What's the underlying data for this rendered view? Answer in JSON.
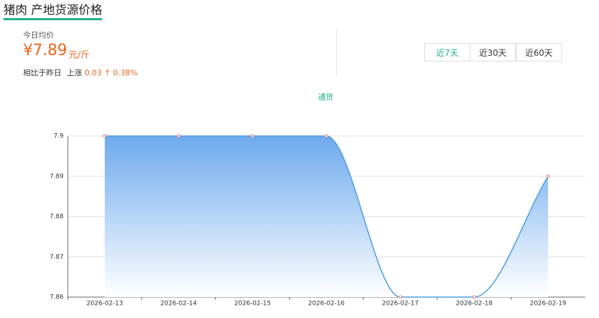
{
  "header": {
    "title": "猪肉 产地货源价格",
    "today_label": "今日均价",
    "price": "¥7.89",
    "unit": "元/斤",
    "compare_label": "相比于昨日",
    "trend_label": "上涨",
    "change": "0.03",
    "arrow": "↑",
    "change_pct": "0.38%"
  },
  "tabs": [
    "近7天",
    "近30天",
    "近60天"
  ],
  "chart_data": {
    "type": "area",
    "categories": [
      "2026-02-13",
      "2026-02-14",
      "2026-02-15",
      "2026-02-16",
      "2026-02-17",
      "2026-02-18",
      "2026-02-19"
    ],
    "series": [
      {
        "name": "通货",
        "color": "#4a9be0",
        "values": [
          7.9,
          7.9,
          7.9,
          7.9,
          7.86,
          7.86,
          7.89
        ]
      }
    ],
    "ylim": [
      7.86,
      7.9
    ],
    "yticks": [
      7.86,
      7.87,
      7.88,
      7.89,
      7.9
    ],
    "grid": true,
    "smooth": true
  }
}
